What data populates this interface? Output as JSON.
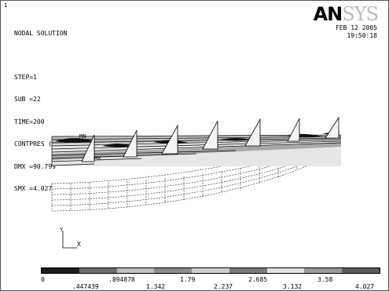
{
  "window": {
    "number": "1"
  },
  "header": {
    "title": "NODAL SOLUTION",
    "lines": [
      "STEP=1",
      "SUB =22",
      "TIME=200",
      "CONTPRES (AVG)",
      "DMX =90.799",
      "SMX =4.027"
    ]
  },
  "logo": {
    "part1": "AN",
    "part2": "SYS"
  },
  "date": {
    "day": "FEB 12 2005",
    "time": "19:50:18"
  },
  "markers": {
    "mn": "MN",
    "mx": "MX"
  },
  "triad": {
    "y": "Y",
    "x": "X"
  },
  "legend": {
    "values": [
      "0",
      ".447439",
      ".894878",
      "1.342",
      "1.79",
      "2.237",
      "2.685",
      "3.132",
      "3.58",
      "4.027"
    ],
    "colors": [
      "#1c1c1c",
      "#6e6e6e",
      "#bdbdbd",
      "#8c8c8c",
      "#cfcfcf",
      "#7a7a7a",
      "#e2e2e2",
      "#9a9a9a",
      "#5a5a5a",
      "#f2f2f2"
    ]
  }
}
